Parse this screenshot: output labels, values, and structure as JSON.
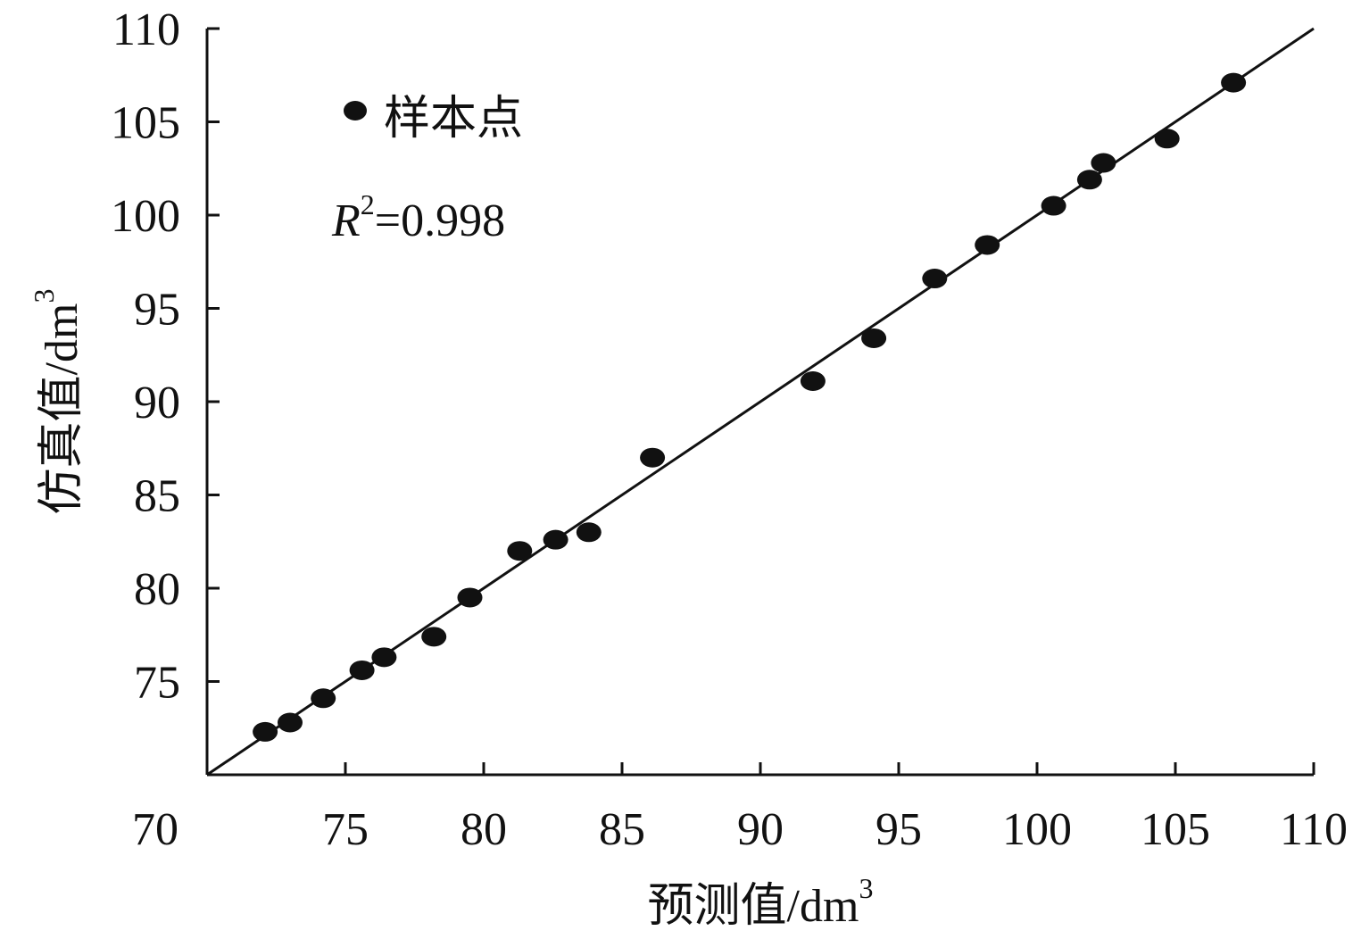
{
  "chart_data": {
    "type": "scatter",
    "xlabel": "预测值/dm",
    "xlabel_sup": "3",
    "ylabel": "仿真值/dm",
    "ylabel_sup": "3",
    "xlim": [
      70,
      110
    ],
    "ylim": [
      70,
      110
    ],
    "xticks": [
      "70",
      "75",
      "80",
      "85",
      "90",
      "95",
      "100",
      "105",
      "110"
    ],
    "yticks": [
      "75",
      "80",
      "85",
      "90",
      "95",
      "100",
      "105",
      "110"
    ],
    "xtick_values": [
      70,
      75,
      80,
      85,
      90,
      95,
      100,
      105,
      110
    ],
    "ytick_values": [
      75,
      80,
      85,
      90,
      95,
      100,
      105,
      110
    ],
    "grid": false,
    "legend": {
      "placement": "top-left",
      "label": "样本点"
    },
    "annotation": {
      "symbol": "R",
      "sup": "2",
      "text": "=0.998"
    },
    "fit_line": {
      "x": [
        70,
        110
      ],
      "y": [
        70,
        110
      ]
    },
    "series": [
      {
        "name": "样本点",
        "color": "#111111",
        "points": [
          [
            72.1,
            72.3
          ],
          [
            73.0,
            72.8
          ],
          [
            74.2,
            74.1
          ],
          [
            75.6,
            75.6
          ],
          [
            76.4,
            76.3
          ],
          [
            78.2,
            77.4
          ],
          [
            79.5,
            79.5
          ],
          [
            81.3,
            82.0
          ],
          [
            82.6,
            82.6
          ],
          [
            83.8,
            83.0
          ],
          [
            86.1,
            87.0
          ],
          [
            91.9,
            91.1
          ],
          [
            94.1,
            93.4
          ],
          [
            96.3,
            96.6
          ],
          [
            98.2,
            98.4
          ],
          [
            100.6,
            100.5
          ],
          [
            101.9,
            101.9
          ],
          [
            102.4,
            102.8
          ],
          [
            104.7,
            104.1
          ],
          [
            107.1,
            107.1
          ]
        ]
      }
    ]
  }
}
